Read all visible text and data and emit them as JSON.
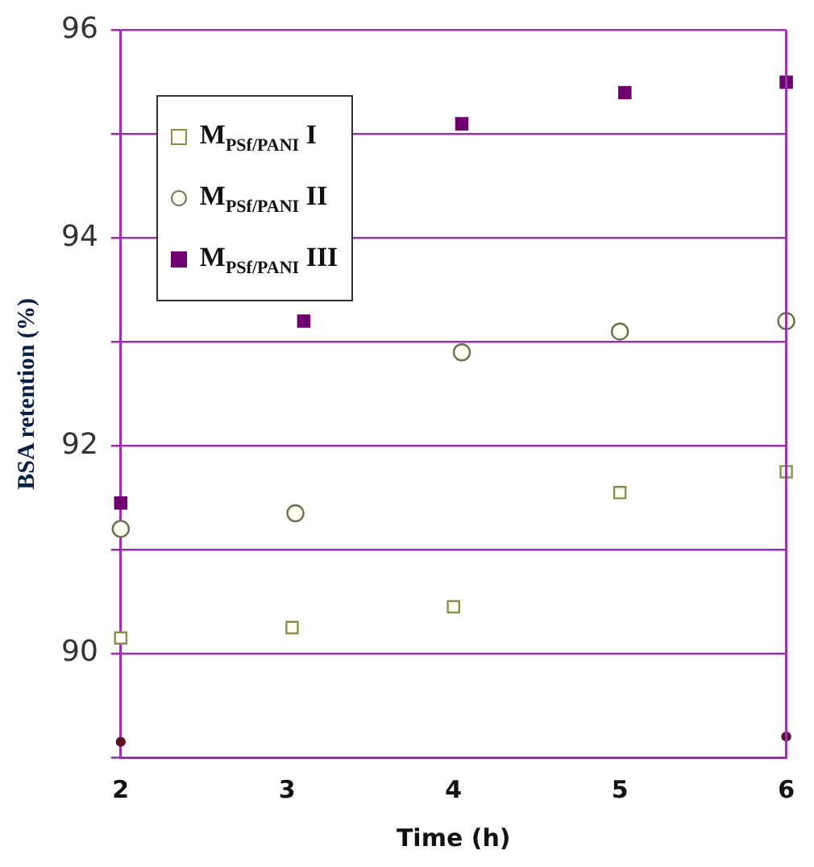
{
  "chart_data": {
    "type": "scatter",
    "xlabel": "Time (h)",
    "ylabel": "BSA retention (%)",
    "xlim": [
      2,
      6
    ],
    "xticks": [
      2,
      3,
      4,
      5,
      6
    ],
    "ylim": [
      89,
      96
    ],
    "yticks": [
      {
        "value": 89,
        "label": null
      },
      90,
      {
        "value": 91,
        "label": null
      },
      92,
      {
        "value": 93,
        "label": null
      },
      94,
      {
        "value": 95,
        "label": null
      },
      96
    ],
    "grid": "y",
    "legend": "top left",
    "series": [
      {
        "name": "M$_{PSf/PANI}$ I",
        "color": "#8c8c50",
        "marker": "square",
        "x": [
          2,
          3.03,
          4,
          5,
          6
        ],
        "values": [
          90.15,
          90.25,
          90.45,
          91.55,
          91.75
        ]
      },
      {
        "name": "M$_{PSf/PANI}$ II",
        "color": "#6e6e50",
        "marker": "circle",
        "x": [
          2,
          3.05,
          4.05,
          5,
          6
        ],
        "values": [
          91.2,
          91.35,
          92.9,
          93.1,
          93.2
        ]
      },
      {
        "name": "M$_{PSf/PANI}$ III",
        "color": "#700070",
        "marker": "square",
        "x": [
          2,
          3.1,
          4.05,
          5.03,
          6
        ],
        "values": [
          91.45,
          93.2,
          95.1,
          95.4,
          95.5
        ]
      },
      {
        "color": "#5a1020",
        "marker": "circle",
        "x": [
          2,
          6
        ],
        "values": [
          89.15,
          89.2
        ]
      }
    ]
  }
}
